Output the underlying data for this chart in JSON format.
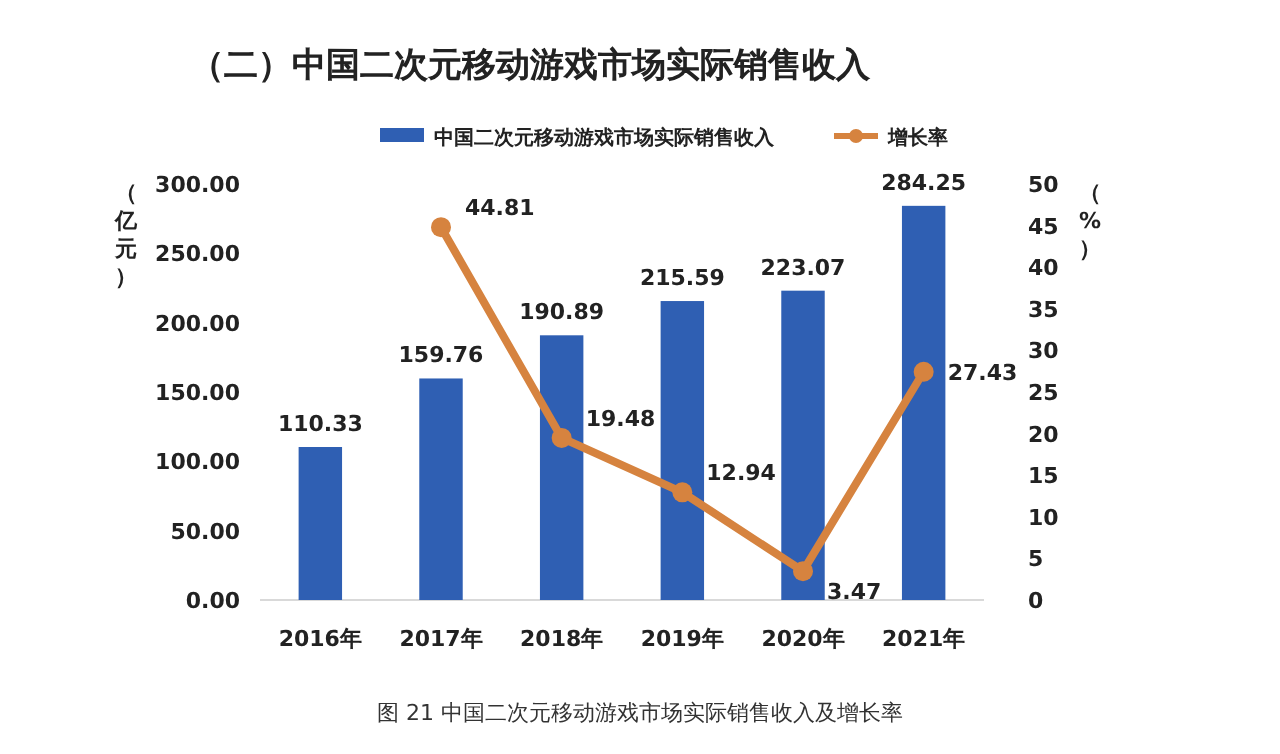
{
  "chart_data": {
    "type": "bar",
    "title": "（二）中国二次元移动游戏市场实际销售收入",
    "annotations": [
      "图 21 中国二次元移动游戏市场实际销售收入及增长率"
    ],
    "categories": [
      "2016年",
      "2017年",
      "2018年",
      "2019年",
      "2020年",
      "2021年"
    ],
    "series": [
      {
        "name": "中国二次元移动游戏市场实际销售收入",
        "color": "#2f5fb3",
        "values": [
          110.33,
          159.76,
          190.89,
          215.59,
          223.07,
          284.25
        ]
      },
      {
        "name": "增长率",
        "type": "line",
        "axis": "y2",
        "color": "#d6833f",
        "values": [
          null,
          44.81,
          19.48,
          12.94,
          3.47,
          27.43
        ]
      }
    ],
    "ylabel": "（亿元）",
    "y2label": "（%）",
    "ylim": [
      0,
      300
    ],
    "yticks": [
      {
        "value": 0,
        "label": "0.00"
      },
      {
        "value": 50,
        "label": "50.00"
      },
      {
        "value": 100,
        "label": "100.00"
      },
      {
        "value": 150,
        "label": "150.00"
      },
      {
        "value": 200,
        "label": "200.00"
      },
      {
        "value": 250,
        "label": "250.00"
      },
      {
        "value": 300,
        "label": "300.00"
      }
    ],
    "y2lim": [
      0,
      50
    ],
    "y2ticks": [
      0,
      5,
      10,
      15,
      20,
      25,
      30,
      35,
      40,
      45,
      50
    ],
    "data_labels": true,
    "legend": "top",
    "marker": "circle",
    "grid": false
  }
}
